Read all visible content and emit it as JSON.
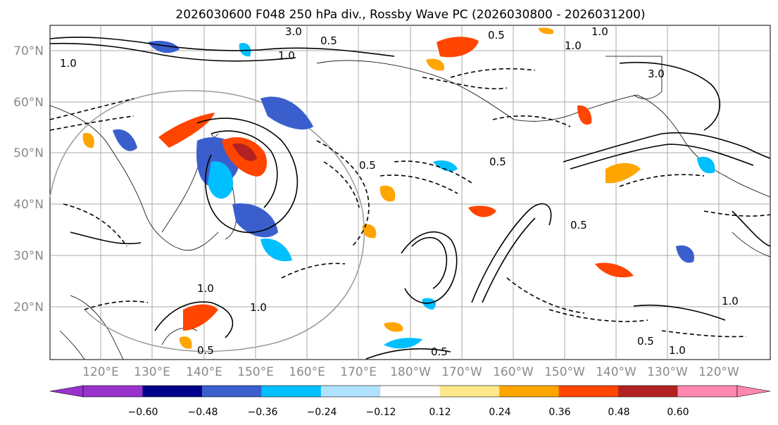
{
  "title": "2026030600 F048 250 hPa div., Rossby Wave PC (2026030800 - 2026031200)",
  "lat_labels": [
    "70°N",
    "60°N",
    "50°N",
    "40°N",
    "30°N",
    "20°N"
  ],
  "lon_labels": [
    "120°E",
    "130°E",
    "140°E",
    "150°E",
    "160°E",
    "170°E",
    "180°W",
    "170°W",
    "160°W",
    "150°W",
    "140°W",
    "130°W",
    "120°W"
  ],
  "colorbar": {
    "ticks": [
      "−0.60",
      "−0.48",
      "−0.36",
      "−0.24",
      "−0.12",
      "0.12",
      "0.24",
      "0.36",
      "0.48",
      "0.60"
    ],
    "colors": [
      "#9932cc",
      "#00008b",
      "#3a5fcd",
      "#00bfff",
      "#b0e2ff",
      "#ffffff",
      "#ffe88a",
      "#ffa500",
      "#ff4500",
      "#b22222",
      "#ff88b0"
    ]
  },
  "contour_labels": {
    "north": [
      "3.0",
      "0.5",
      "1.0",
      "1.0",
      "1.0",
      "0.5",
      "1.0",
      "3.0"
    ],
    "south": [
      "0.5",
      "1.0",
      "0.5",
      "1.0",
      "0.5",
      "0.5",
      "1.0",
      "0.5",
      "1.0",
      "0.5"
    ]
  },
  "colors": {
    "shade_pos": "#ff4500",
    "shade_neg": "#3a5fcd"
  }
}
